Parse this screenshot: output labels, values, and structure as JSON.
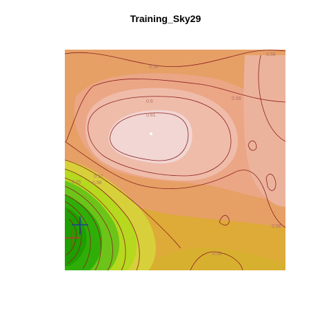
{
  "chart_data": {
    "type": "heatmap",
    "title": "Training_Sky29",
    "xlabel": "",
    "ylabel": "",
    "colorscale": [
      "#1aa000",
      "#60c000",
      "#c8e000",
      "#e0b020",
      "#e8a060",
      "#eec0b0",
      "#f0dada"
    ],
    "contour_color": "#8b2020",
    "contour_labels": [
      {
        "text": "0.58"
      },
      {
        "text": "0.59"
      },
      {
        "text": "0.59"
      },
      {
        "text": "0.6"
      },
      {
        "text": "0.61"
      },
      {
        "text": "0.57"
      },
      {
        "text": "0.56"
      },
      {
        "text": "0.55"
      },
      {
        "text": "0.58"
      },
      {
        "text": "0.58"
      }
    ],
    "markers": [
      {
        "kind": "cross",
        "color": "#1f3fa0"
      },
      {
        "kind": "cross",
        "color": "#c0392b"
      },
      {
        "kind": "dot",
        "color": "#ffffff"
      }
    ]
  }
}
